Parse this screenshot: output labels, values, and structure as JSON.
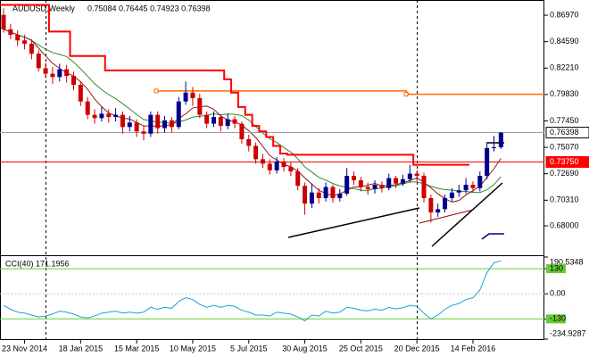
{
  "chart_data": {
    "type": "candlestick",
    "title": "AUDUSD,Weekly",
    "ohlc_label": "0.75084 0.76445 0.74923 0.76398",
    "categories": [
      null,
      null,
      null,
      "23 Nov 2014",
      null,
      null,
      null,
      null,
      null,
      null,
      null,
      "18 Jan 2015",
      null,
      null,
      null,
      null,
      null,
      null,
      null,
      "15 Mar 2015",
      null,
      null,
      null,
      null,
      null,
      null,
      null,
      "10 May 2015",
      null,
      null,
      null,
      null,
      null,
      null,
      null,
      "5 Jul 2015",
      null,
      null,
      null,
      null,
      null,
      null,
      null,
      "30 Aug 2015",
      null,
      null,
      null,
      null,
      null,
      null,
      null,
      "25 Oct 2015",
      null,
      null,
      null,
      null,
      null,
      null,
      null,
      "20 Dec 2015",
      null,
      null,
      null,
      null,
      null,
      null,
      null,
      "14 Feb 2016",
      null,
      null,
      null,
      null
    ],
    "open": [
      0.87,
      0.857,
      0.852,
      0.847,
      0.844,
      0.835,
      0.822,
      0.817,
      0.814,
      0.821,
      0.815,
      0.807,
      0.792,
      0.78,
      0.777,
      0.781,
      0.778,
      0.78,
      0.769,
      0.773,
      0.765,
      0.763,
      0.78,
      0.768,
      0.775,
      0.769,
      0.792,
      0.8,
      0.795,
      0.78,
      0.772,
      0.778,
      0.77,
      0.776,
      0.772,
      0.758,
      0.752,
      0.74,
      0.736,
      0.73,
      0.738,
      0.733,
      0.729,
      0.716,
      0.7,
      0.71,
      0.705,
      0.715,
      0.705,
      0.709,
      0.725,
      0.721,
      0.715,
      0.713,
      0.717,
      0.714,
      0.723,
      0.718,
      0.722,
      0.727,
      0.725,
      0.705,
      0.692,
      0.695,
      0.705,
      0.71,
      0.712,
      0.717,
      0.714,
      0.725,
      0.75,
      0.75084
    ],
    "high": [
      0.876,
      0.862,
      0.856,
      0.852,
      0.848,
      0.838,
      0.827,
      0.823,
      0.826,
      0.825,
      0.819,
      0.81,
      0.796,
      0.785,
      0.787,
      0.785,
      0.786,
      0.783,
      0.779,
      0.776,
      0.77,
      0.783,
      0.783,
      0.779,
      0.778,
      0.796,
      0.81,
      0.805,
      0.799,
      0.783,
      0.783,
      0.78,
      0.781,
      0.779,
      0.774,
      0.762,
      0.755,
      0.745,
      0.74,
      0.742,
      0.741,
      0.737,
      0.732,
      0.719,
      0.718,
      0.714,
      0.719,
      0.717,
      0.713,
      0.732,
      0.729,
      0.724,
      0.719,
      0.721,
      0.72,
      0.727,
      0.725,
      0.726,
      0.735,
      0.73,
      0.728,
      0.708,
      0.7,
      0.708,
      0.714,
      0.717,
      0.723,
      0.72,
      0.729,
      0.754,
      0.761,
      0.76445
    ],
    "low": [
      0.854,
      0.848,
      0.842,
      0.839,
      0.83,
      0.819,
      0.813,
      0.808,
      0.81,
      0.809,
      0.802,
      0.788,
      0.776,
      0.772,
      0.774,
      0.773,
      0.774,
      0.763,
      0.765,
      0.76,
      0.757,
      0.76,
      0.763,
      0.764,
      0.764,
      0.767,
      0.789,
      0.788,
      0.777,
      0.768,
      0.769,
      0.765,
      0.767,
      0.768,
      0.754,
      0.747,
      0.736,
      0.732,
      0.726,
      0.727,
      0.729,
      0.725,
      0.712,
      0.69,
      0.696,
      0.7,
      0.702,
      0.701,
      0.702,
      0.707,
      0.717,
      0.711,
      0.708,
      0.709,
      0.71,
      0.712,
      0.714,
      0.716,
      0.719,
      0.72,
      0.701,
      0.683,
      0.688,
      0.692,
      0.702,
      0.706,
      0.709,
      0.71,
      0.711,
      0.722,
      0.747,
      0.74923
    ],
    "close": [
      0.857,
      0.852,
      0.847,
      0.844,
      0.835,
      0.822,
      0.817,
      0.814,
      0.821,
      0.815,
      0.807,
      0.792,
      0.78,
      0.777,
      0.781,
      0.778,
      0.78,
      0.769,
      0.773,
      0.765,
      0.763,
      0.78,
      0.768,
      0.775,
      0.769,
      0.792,
      0.8,
      0.795,
      0.78,
      0.772,
      0.778,
      0.77,
      0.776,
      0.772,
      0.758,
      0.752,
      0.74,
      0.736,
      0.73,
      0.738,
      0.733,
      0.729,
      0.716,
      0.7,
      0.71,
      0.705,
      0.715,
      0.705,
      0.709,
      0.725,
      0.721,
      0.715,
      0.713,
      0.717,
      0.714,
      0.723,
      0.718,
      0.722,
      0.727,
      0.725,
      0.705,
      0.692,
      0.695,
      0.705,
      0.71,
      0.712,
      0.717,
      0.714,
      0.725,
      0.75,
      0.7508,
      0.76398
    ],
    "up_color": "#00008b",
    "down_color": "#cc0000",
    "stop_line": {
      "color": "#ff0000",
      "values": [
        0.879,
        0.879,
        0.879,
        0.879,
        0.879,
        0.879,
        0.879,
        0.855,
        0.855,
        0.855,
        0.833,
        0.833,
        0.833,
        0.833,
        0.833,
        0.82,
        0.82,
        0.82,
        0.82,
        0.82,
        0.82,
        0.82,
        0.82,
        0.82,
        0.82,
        0.82,
        0.82,
        0.82,
        0.82,
        0.82,
        0.82,
        0.82,
        0.812,
        0.8,
        0.787,
        0.78,
        0.77,
        0.765,
        0.76,
        0.752,
        0.745,
        0.744,
        0.744,
        0.744,
        0.744,
        0.744,
        0.744,
        0.744,
        0.744,
        0.744,
        0.744,
        0.744,
        0.744,
        0.744,
        0.744,
        0.744,
        0.744,
        0.744,
        0.744,
        0.735,
        0.735,
        0.735,
        0.735,
        0.735,
        0.735,
        0.735,
        0.735,
        null,
        null,
        null,
        null,
        null
      ]
    },
    "orange_line": {
      "color": "#ff6a00",
      "values": [
        0.8015,
        0.7985
      ]
    },
    "hlines": [
      {
        "value": 0.7375,
        "label": "0.73750",
        "color": "#ff0000"
      },
      {
        "value": 0.76398,
        "label": "0.76398",
        "color": "#a0a0a0"
      }
    ],
    "ylim": [
      0.6543,
      0.8834
    ],
    "yticks": [
      {
        "value": 0.8697,
        "label": "0.86970"
      },
      {
        "value": 0.8459,
        "label": "0.84590"
      },
      {
        "value": 0.8221,
        "label": "0.82210"
      },
      {
        "value": 0.7983,
        "label": "0.79830"
      },
      {
        "value": 0.7745,
        "label": "0.77450"
      },
      {
        "value": 0.7507,
        "label": "0.75070"
      },
      {
        "value": 0.7269,
        "label": "0.72690"
      },
      {
        "value": 0.7031,
        "label": "0.70310"
      },
      {
        "value": 0.68,
        "label": "0.68000"
      }
    ],
    "cci": {
      "title": "CCI(40) 171.1956",
      "color": "#20a0d0",
      "level_color": "#66cc33",
      "values": [
        -60,
        -80,
        -95,
        -100,
        -110,
        -120,
        -115,
        -105,
        -90,
        -95,
        -105,
        -120,
        -125,
        -115,
        -100,
        -95,
        -90,
        -100,
        -95,
        -100,
        -95,
        -70,
        -80,
        -70,
        -75,
        -40,
        -20,
        -30,
        -55,
        -70,
        -60,
        -70,
        -60,
        -65,
        -85,
        -95,
        -110,
        -110,
        -115,
        -95,
        -100,
        -105,
        -120,
        -140,
        -110,
        -115,
        -90,
        -100,
        -95,
        -70,
        -75,
        -85,
        -88,
        -80,
        -85,
        -70,
        -78,
        -72,
        -60,
        -65,
        -100,
        -130,
        -110,
        -80,
        -60,
        -50,
        -30,
        -20,
        20,
        110,
        160,
        171.1956
      ],
      "ylim": [
        -234.9287,
        190.5348
      ],
      "yticks": [
        190.5348,
        130,
        {
          "value": 0,
          "label": "0.00"
        },
        -130,
        -234.9287
      ],
      "levels": [
        130,
        -130
      ]
    }
  }
}
